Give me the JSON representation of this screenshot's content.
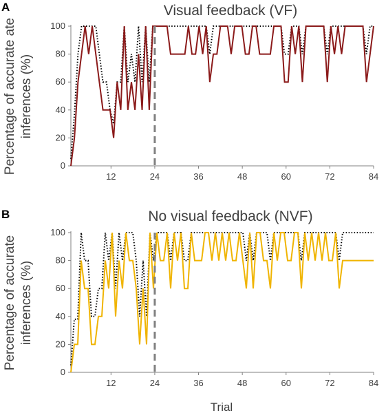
{
  "xlabel": "Trial",
  "chart_data": [
    {
      "type": "line",
      "panel": "A",
      "title": "Visual feedback (VF)",
      "ylabel_lines": [
        "Percentage of accurate ate",
        "inferences (%)"
      ],
      "xlim": [
        1,
        84
      ],
      "ylim": [
        0,
        100
      ],
      "xticks": [
        12,
        24,
        36,
        48,
        60,
        72,
        84
      ],
      "yticks": [
        0,
        20,
        40,
        60,
        80,
        100
      ],
      "divider_x": 24,
      "grid": false,
      "colors": {
        "participant": "#8b1a1a",
        "model": "#000000",
        "divider": "#808080",
        "axis": "#808080"
      },
      "series": [
        {
          "style": "solid",
          "values": [
            0,
            20,
            60,
            80,
            100,
            80,
            100,
            80,
            60,
            40,
            40,
            40,
            20,
            60,
            40,
            100,
            40,
            60,
            40,
            80,
            40,
            100,
            40,
            100,
            100,
            100,
            100,
            100,
            80,
            80,
            80,
            80,
            80,
            100,
            80,
            80,
            100,
            80,
            100,
            60,
            80,
            80,
            100,
            100,
            100,
            80,
            100,
            100,
            100,
            80,
            80,
            100,
            100,
            80,
            80,
            80,
            80,
            100,
            100,
            100,
            60,
            60,
            100,
            80,
            100,
            60,
            100,
            100,
            100,
            100,
            100,
            100,
            60,
            100,
            80,
            100,
            80,
            100,
            100,
            100,
            100,
            100,
            100,
            60,
            80,
            100
          ]
        },
        {
          "style": "dotted",
          "values": [
            5,
            37,
            80,
            100,
            100,
            100,
            100,
            100,
            80,
            60,
            60,
            40,
            30,
            60,
            60,
            100,
            60,
            80,
            60,
            100,
            60,
            100,
            60,
            100,
            100,
            100,
            100,
            100,
            100,
            100,
            100,
            100,
            100,
            100,
            100,
            100,
            100,
            100,
            100,
            80,
            100,
            100,
            100,
            100,
            100,
            100,
            100,
            100,
            100,
            100,
            100,
            100,
            100,
            100,
            100,
            100,
            100,
            100,
            100,
            100,
            80,
            80,
            100,
            100,
            100,
            80,
            100,
            100,
            100,
            100,
            100,
            100,
            80,
            100,
            100,
            100,
            100,
            100,
            100,
            100,
            100,
            100,
            100,
            80,
            100,
            100
          ]
        }
      ]
    },
    {
      "type": "line",
      "panel": "B",
      "title": "No visual feedback (NVF)",
      "ylabel_lines": [
        "Percentage of accurate",
        "inferences (%)"
      ],
      "xlim": [
        1,
        84
      ],
      "ylim": [
        0,
        100
      ],
      "xticks": [
        12,
        24,
        36,
        48,
        60,
        72,
        84
      ],
      "yticks": [
        0,
        20,
        40,
        60,
        80,
        100
      ],
      "divider_x": 24,
      "grid": false,
      "colors": {
        "participant": "#f0b400",
        "model": "#000000",
        "divider": "#808080",
        "axis": "#808080"
      },
      "series": [
        {
          "style": "solid",
          "values": [
            0,
            20,
            20,
            80,
            60,
            60,
            20,
            20,
            40,
            40,
            80,
            60,
            100,
            40,
            80,
            60,
            100,
            80,
            80,
            60,
            20,
            60,
            20,
            100,
            60,
            100,
            80,
            80,
            100,
            60,
            100,
            80,
            100,
            60,
            60,
            100,
            80,
            80,
            80,
            100,
            100,
            80,
            100,
            80,
            100,
            80,
            100,
            80,
            80,
            100,
            80,
            60,
            100,
            60,
            100,
            100,
            80,
            80,
            60,
            100,
            80,
            100,
            100,
            80,
            80,
            100,
            100,
            60,
            100,
            80,
            100,
            80,
            100,
            80,
            100,
            80,
            80,
            100,
            60,
            80,
            80,
            80,
            80,
            80,
            80,
            80,
            80,
            80,
            80
          ]
        },
        {
          "style": "dotted",
          "values": [
            5,
            38,
            38,
            100,
            80,
            80,
            40,
            40,
            60,
            60,
            100,
            80,
            100,
            60,
            100,
            80,
            100,
            100,
            100,
            80,
            40,
            80,
            40,
            100,
            80,
            100,
            100,
            100,
            100,
            80,
            100,
            100,
            100,
            80,
            80,
            100,
            100,
            100,
            100,
            100,
            100,
            100,
            100,
            100,
            100,
            100,
            100,
            100,
            100,
            100,
            100,
            80,
            100,
            80,
            100,
            100,
            100,
            100,
            80,
            100,
            100,
            100,
            100,
            100,
            100,
            100,
            100,
            80,
            100,
            100,
            100,
            100,
            100,
            100,
            100,
            100,
            100,
            100,
            80,
            100,
            100,
            100,
            100,
            100,
            100,
            100,
            100,
            100,
            100
          ]
        }
      ]
    }
  ]
}
